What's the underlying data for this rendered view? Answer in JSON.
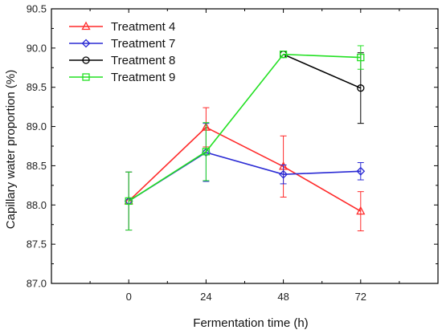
{
  "chart_data": {
    "type": "line",
    "xlabel": "Fermentation time (h)",
    "ylabel": "Capillary water proportion (%)",
    "x": [
      0,
      24,
      48,
      72
    ],
    "x_tick_labels": [
      "0",
      "24",
      "48",
      "72"
    ],
    "xlim": [
      -24,
      96
    ],
    "ylim": [
      87.0,
      90.5
    ],
    "y_ticks": [
      "87.0",
      "87.5",
      "88.0",
      "88.5",
      "89.0",
      "89.5",
      "90.0",
      "90.5"
    ],
    "grid": false,
    "legend_position": "top-left",
    "series": [
      {
        "name": "Treatment 4",
        "color": "#ff2a2a",
        "marker": "triangle",
        "values": [
          88.05,
          88.99,
          88.49,
          87.92
        ],
        "errors": [
          0.37,
          0.25,
          0.39,
          0.25
        ]
      },
      {
        "name": "Treatment 7",
        "color": "#2a2ad4",
        "marker": "diamond",
        "values": [
          88.05,
          88.67,
          88.39,
          88.43
        ],
        "errors": [
          0.37,
          0.37,
          0.12,
          0.11
        ]
      },
      {
        "name": "Treatment 8",
        "color": "#000000",
        "marker": "circle",
        "x": [
          48,
          72
        ],
        "values": [
          89.92,
          89.49
        ],
        "errors": [
          null,
          0.45
        ]
      },
      {
        "name": "Treatment 9",
        "color": "#22e022",
        "marker": "square",
        "values": [
          88.05,
          88.68,
          89.92,
          89.88
        ],
        "errors": [
          0.37,
          0.37,
          null,
          0.15
        ]
      }
    ]
  }
}
